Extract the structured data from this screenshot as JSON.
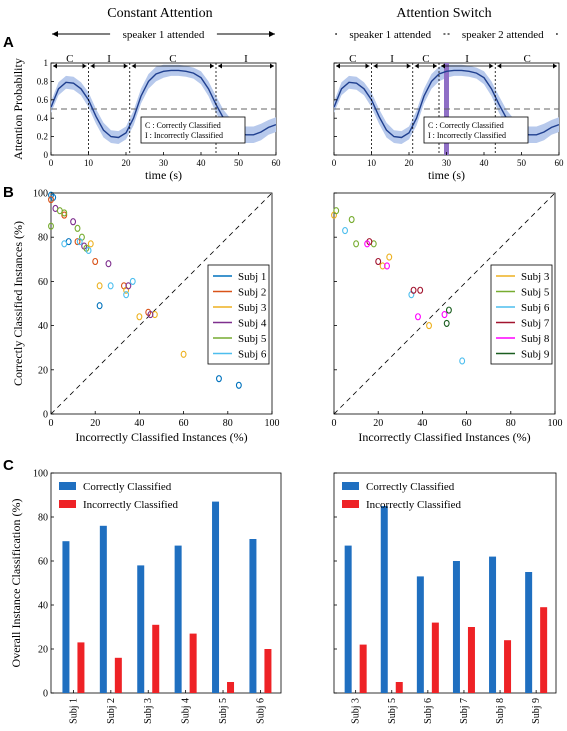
{
  "colors": {
    "band": "#b7c9ec",
    "line": "#1f3f8f",
    "switch_bar": "#8f6fc6",
    "correct_bar": "#1f6fc0",
    "incorrect_bar": "#ee2226"
  },
  "column_titles": {
    "left": "Constant Attention",
    "right": "Attention Switch"
  },
  "panel_labels": {
    "a": "A",
    "b": "B",
    "c": "C"
  },
  "chart_data": [
    {
      "id": "A_left",
      "type": "line",
      "xlabel": "time (s)",
      "ylabel": "Attention Probability",
      "xlim": [
        0,
        60
      ],
      "ylim": [
        0,
        1
      ],
      "xticks": [
        0,
        10,
        20,
        30,
        40,
        50,
        60
      ],
      "yticks": [
        0,
        0.2,
        0.4,
        0.6,
        0.8,
        1
      ],
      "chance_level": 0.5,
      "speaker_arrows": [
        {
          "label": "speaker 1 attended",
          "from": 0,
          "to": 60
        }
      ],
      "segments": [
        {
          "label": "C",
          "from": 0,
          "to": 10
        },
        {
          "label": "I",
          "from": 10,
          "to": 21
        },
        {
          "label": "C",
          "from": 21,
          "to": 44
        },
        {
          "label": "I",
          "from": 44,
          "to": 60
        }
      ],
      "x": [
        0,
        2,
        4,
        6,
        8,
        10,
        12,
        14,
        16,
        18,
        20,
        22,
        24,
        26,
        28,
        30,
        32,
        34,
        36,
        38,
        40,
        42,
        44,
        46,
        48,
        50,
        52,
        54,
        56,
        58,
        60
      ],
      "y": [
        0.52,
        0.72,
        0.79,
        0.78,
        0.72,
        0.6,
        0.42,
        0.27,
        0.2,
        0.19,
        0.24,
        0.4,
        0.64,
        0.8,
        0.88,
        0.91,
        0.92,
        0.92,
        0.91,
        0.89,
        0.84,
        0.72,
        0.55,
        0.4,
        0.3,
        0.24,
        0.22,
        0.22,
        0.25,
        0.3,
        0.33
      ],
      "band_halfwidth": [
        0.06,
        0.07,
        0.07,
        0.07,
        0.07,
        0.08,
        0.08,
        0.08,
        0.07,
        0.07,
        0.07,
        0.08,
        0.08,
        0.08,
        0.08,
        0.07,
        0.06,
        0.06,
        0.06,
        0.06,
        0.07,
        0.08,
        0.09,
        0.09,
        0.09,
        0.09,
        0.09,
        0.09,
        0.09,
        0.08,
        0.08
      ],
      "legend_lines": [
        "C : Correctly Classified",
        "I : Incorrectly Classified"
      ]
    },
    {
      "id": "A_right",
      "type": "line",
      "xlabel": "time (s)",
      "ylabel": "",
      "xlim": [
        0,
        60
      ],
      "ylim": [
        0,
        1
      ],
      "xticks": [
        0,
        10,
        20,
        30,
        40,
        50,
        60
      ],
      "yticks": [
        0,
        0.2,
        0.4,
        0.6,
        0.8,
        1
      ],
      "chance_level": 0.5,
      "switch_time": 30,
      "speaker_arrows": [
        {
          "label": "speaker 1 attended",
          "from": 0,
          "to": 30
        },
        {
          "label": "speaker 2 attended",
          "from": 30,
          "to": 60
        }
      ],
      "segments": [
        {
          "label": "C",
          "from": 0,
          "to": 10
        },
        {
          "label": "I",
          "from": 10,
          "to": 21
        },
        {
          "label": "C",
          "from": 21,
          "to": 28
        },
        {
          "label": "I",
          "from": 28,
          "to": 43
        },
        {
          "label": "C",
          "from": 43,
          "to": 60
        }
      ],
      "x": [
        0,
        2,
        4,
        6,
        8,
        10,
        12,
        14,
        16,
        18,
        20,
        22,
        24,
        26,
        28,
        30,
        32,
        34,
        36,
        38,
        40,
        42,
        44,
        46,
        48,
        50,
        52,
        54,
        56,
        58,
        60
      ],
      "y": [
        0.52,
        0.72,
        0.79,
        0.78,
        0.72,
        0.6,
        0.42,
        0.27,
        0.2,
        0.19,
        0.24,
        0.4,
        0.64,
        0.8,
        0.88,
        0.91,
        0.92,
        0.92,
        0.91,
        0.89,
        0.84,
        0.72,
        0.55,
        0.4,
        0.3,
        0.24,
        0.22,
        0.22,
        0.25,
        0.3,
        0.33
      ],
      "band_halfwidth": [
        0.06,
        0.07,
        0.07,
        0.07,
        0.07,
        0.08,
        0.08,
        0.08,
        0.07,
        0.07,
        0.07,
        0.08,
        0.08,
        0.08,
        0.08,
        0.07,
        0.06,
        0.06,
        0.06,
        0.06,
        0.07,
        0.08,
        0.09,
        0.09,
        0.09,
        0.09,
        0.09,
        0.09,
        0.09,
        0.08,
        0.08
      ],
      "legend_lines": [
        "C : Correctly Classified",
        "I : Incorrectly Classified"
      ]
    },
    {
      "id": "B_left",
      "type": "scatter",
      "xlabel": "Incorrectly Classified Instances (%)",
      "ylabel": "Correctly Classified Instances (%)",
      "xlim": [
        0,
        100
      ],
      "ylim": [
        0,
        100
      ],
      "xticks": [
        0,
        20,
        40,
        60,
        80,
        100
      ],
      "yticks": [
        0,
        20,
        40,
        60,
        80,
        100
      ],
      "diagonal": true,
      "series": [
        {
          "name": "Subj 1",
          "color": "#0072bd",
          "points": [
            [
              0,
              99
            ],
            [
              1,
              98
            ],
            [
              8,
              78
            ],
            [
              22,
              49
            ],
            [
              76,
              16
            ],
            [
              85,
              13
            ]
          ]
        },
        {
          "name": "Subj 2",
          "color": "#d95319",
          "points": [
            [
              0,
              97
            ],
            [
              6,
              90
            ],
            [
              12,
              78
            ],
            [
              20,
              69
            ],
            [
              33,
              58
            ],
            [
              44,
              46
            ]
          ]
        },
        {
          "name": "Subj 3",
          "color": "#edb120",
          "points": [
            [
              18,
              77
            ],
            [
              22,
              58
            ],
            [
              34,
              56
            ],
            [
              40,
              44
            ],
            [
              47,
              45
            ],
            [
              60,
              27
            ]
          ]
        },
        {
          "name": "Subj 4",
          "color": "#7e2f8e",
          "points": [
            [
              2,
              93
            ],
            [
              10,
              87
            ],
            [
              15,
              76
            ],
            [
              26,
              68
            ],
            [
              35,
              58
            ],
            [
              45,
              45
            ]
          ]
        },
        {
          "name": "Subj 5",
          "color": "#77ac30",
          "points": [
            [
              0,
              85
            ],
            [
              4,
              92
            ],
            [
              6,
              91
            ],
            [
              12,
              84
            ],
            [
              14,
              80
            ],
            [
              16,
              75
            ]
          ]
        },
        {
          "name": "Subj 6",
          "color": "#4dbeee",
          "points": [
            [
              6,
              77
            ],
            [
              13,
              78
            ],
            [
              17,
              74
            ],
            [
              27,
              58
            ],
            [
              34,
              54
            ],
            [
              37,
              60
            ]
          ]
        }
      ]
    },
    {
      "id": "B_right",
      "type": "scatter",
      "xlabel": "Incorrectly Classified Instances (%)",
      "ylabel": "",
      "xlim": [
        0,
        100
      ],
      "ylim": [
        0,
        100
      ],
      "xticks": [
        0,
        20,
        40,
        60,
        80,
        100
      ],
      "yticks": [
        0,
        20,
        40,
        60,
        80,
        100
      ],
      "diagonal": true,
      "series": [
        {
          "name": "Subj 3",
          "color": "#edb120",
          "points": [
            [
              0,
              90
            ],
            [
              22,
              67
            ],
            [
              25,
              71
            ],
            [
              43,
              40
            ]
          ]
        },
        {
          "name": "Subj 5",
          "color": "#77ac30",
          "points": [
            [
              1,
              92
            ],
            [
              8,
              88
            ],
            [
              10,
              77
            ],
            [
              18,
              77
            ]
          ]
        },
        {
          "name": "Subj 6",
          "color": "#4dbeee",
          "points": [
            [
              5,
              83
            ],
            [
              35,
              54
            ],
            [
              58,
              24
            ]
          ]
        },
        {
          "name": "Subj 7",
          "color": "#a2142f",
          "points": [
            [
              16,
              78
            ],
            [
              20,
              69
            ],
            [
              36,
              56
            ],
            [
              39,
              56
            ]
          ]
        },
        {
          "name": "Subj 8",
          "color": "#ff00ff",
          "points": [
            [
              15,
              77
            ],
            [
              24,
              67
            ],
            [
              38,
              44
            ],
            [
              50,
              45
            ]
          ]
        },
        {
          "name": "Subj 9",
          "color": "#1b5e20",
          "points": [
            [
              51,
              41
            ],
            [
              52,
              47
            ]
          ]
        }
      ]
    },
    {
      "id": "C_left",
      "type": "bar",
      "ylabel": "Overall Instance Classification (%)",
      "ylim": [
        0,
        100
      ],
      "yticks": [
        0,
        20,
        40,
        60,
        80,
        100
      ],
      "categories": [
        "Subj 1",
        "Subj 2",
        "Subj 3",
        "Subj 4",
        "Subj 5",
        "Subj 6"
      ],
      "series": [
        {
          "name": "Correctly Classified",
          "values": [
            69,
            76,
            58,
            67,
            87,
            70
          ]
        },
        {
          "name": "Incorrectly Classified",
          "values": [
            23,
            16,
            31,
            27,
            5,
            20
          ]
        }
      ]
    },
    {
      "id": "C_right",
      "type": "bar",
      "ylabel": "",
      "ylim": [
        0,
        100
      ],
      "yticks": [
        0,
        20,
        40,
        60,
        80,
        100
      ],
      "categories": [
        "Subj 3",
        "Subj 5",
        "Subj 6",
        "Subj 7",
        "Subj 8",
        "Subj 9"
      ],
      "series": [
        {
          "name": "Correctly Classified",
          "values": [
            67,
            85,
            53,
            60,
            62,
            55
          ]
        },
        {
          "name": "Incorrectly Classified",
          "values": [
            22,
            5,
            32,
            30,
            24,
            39
          ]
        }
      ]
    }
  ]
}
